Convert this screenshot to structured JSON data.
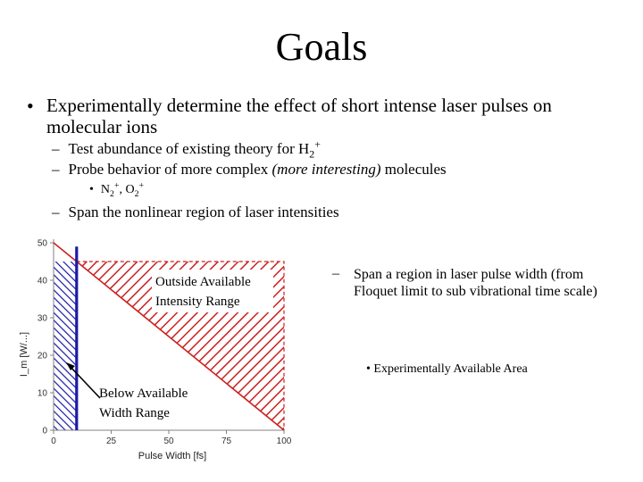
{
  "title": "Goals",
  "bullet1": {
    "text": "Experimentally determine the effect of short intense laser pulses on molecular ions"
  },
  "sub1": {
    "prefix": "Test abundance of existing theory for H",
    "sub": "2",
    "sup": "+"
  },
  "sub2": {
    "prefix": "Probe behavior of more complex ",
    "italic": "(more interesting)",
    "suffix": " molecules"
  },
  "subsub": {
    "n": "N",
    "n_sub": "2",
    "n_sup": "+",
    "sep": ", O",
    "o_sub": "2",
    "o_sup": "+"
  },
  "sub3": {
    "text": "Span the nonlinear region of laser intensities"
  },
  "right_bullet": {
    "text": "Span a region in laser pulse width (from Floquet limit to sub vibrational time scale)"
  },
  "area_bullet": {
    "text": "Experimentally Available Area"
  },
  "chart_data": {
    "type": "area",
    "xlabel": "Pulse Width [fs]",
    "ylabel": "I_m [W/...]",
    "xlim": [
      0,
      100
    ],
    "ylim": [
      0,
      50
    ],
    "x_ticks": [
      "0",
      "25",
      "50",
      "75",
      "100"
    ],
    "y_ticks": [
      "0",
      "10",
      "20",
      "30",
      "40",
      "50"
    ],
    "boundary_line": {
      "x": [
        0,
        100
      ],
      "y": [
        50,
        0
      ]
    },
    "vertical_limit_x": 10,
    "outside_intensity_region": {
      "x_range": [
        10,
        100
      ],
      "y_top": 45
    },
    "below_width_region": {
      "x_range": [
        0,
        10
      ],
      "y_top": 45
    },
    "annotations": {
      "outside_intensity": "Outside Available Intensity Range",
      "below_width": "Below Available Width Range"
    },
    "colors": {
      "red": "#cc2020",
      "blue": "#1a1aa8",
      "axis": "#808080"
    }
  }
}
